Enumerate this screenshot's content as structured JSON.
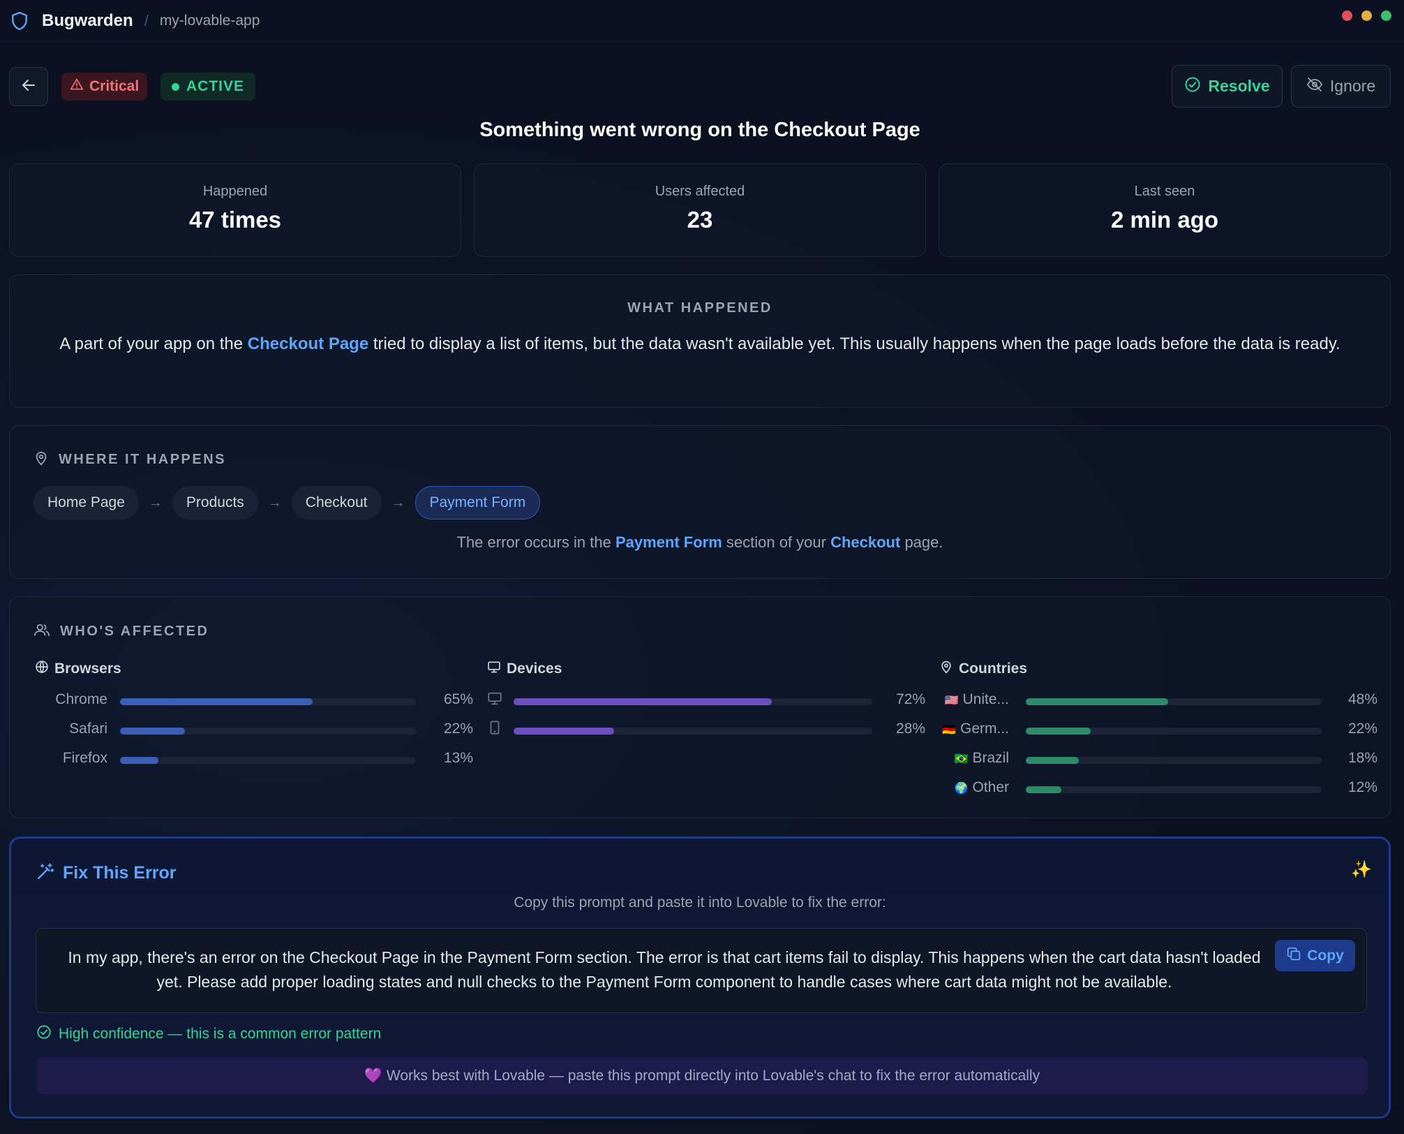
{
  "topbar": {
    "brand": "Bugwarden",
    "separator": "/",
    "project": "my-lovable-app"
  },
  "window_dots": [
    "#e0505a",
    "#e0b040",
    "#3fbf6a"
  ],
  "issue": {
    "severity": "Critical",
    "status": "ACTIVE",
    "title": "Something went wrong on the Checkout Page"
  },
  "actions": {
    "resolve": "Resolve",
    "ignore": "Ignore"
  },
  "stats": [
    {
      "label": "Happened",
      "value": "47 times"
    },
    {
      "label": "Users affected",
      "value": "23"
    },
    {
      "label": "Last seen",
      "value": "2 min ago"
    }
  ],
  "what_happened": {
    "heading": "WHAT HAPPENED",
    "before": "A part of your app on the ",
    "highlight": "Checkout Page",
    "after": " tried to display a list of items, but the data wasn't available yet. This usually happens when the page loads before the data is ready."
  },
  "where": {
    "heading": "WHERE IT HAPPENS",
    "crumbs": [
      "Home Page",
      "Products",
      "Checkout",
      "Payment Form"
    ],
    "arrow": "→",
    "desc_a": "The error occurs in the ",
    "desc_b": "Payment Form",
    "desc_c": " section of your ",
    "desc_d": "Checkout",
    "desc_e": " page."
  },
  "who": {
    "heading": "WHO'S AFFECTED",
    "browsers": {
      "title": "Browsers",
      "rows": [
        {
          "name": "Chrome",
          "pct_label": "65%",
          "value": 0.65
        },
        {
          "name": "Safari",
          "pct_label": "22%",
          "value": 0.22
        },
        {
          "name": "Firefox",
          "pct_label": "13%",
          "value": 0.13
        }
      ]
    },
    "devices": {
      "title": "Devices",
      "rows": [
        {
          "icon": "desktop-icon",
          "pct_label": "72%",
          "value": 0.72
        },
        {
          "icon": "mobile-icon",
          "pct_label": "28%",
          "value": 0.28
        }
      ]
    },
    "countries": {
      "title": "Countries",
      "rows": [
        {
          "flag": "🇺🇸",
          "name": "Unite...",
          "pct_label": "48%",
          "value": 0.48
        },
        {
          "flag": "🇩🇪",
          "name": "Germ...",
          "pct_label": "22%",
          "value": 0.22
        },
        {
          "flag": "🇧🇷",
          "name": "Brazil",
          "pct_label": "18%",
          "value": 0.18
        },
        {
          "flag": "🌍",
          "name": "Other",
          "pct_label": "12%",
          "value": 0.12
        }
      ]
    },
    "colors": {
      "browsers": "#3b5fb5",
      "devices": "#6d4fc2",
      "countries": "#2f8a6a"
    }
  },
  "fix": {
    "title": "Fix This Error",
    "sparkle": "✨",
    "subtitle": "Copy this prompt and paste it into Lovable to fix the error:",
    "prompt": "In my app, there's an error on the Checkout Page in the Payment Form section. The error is that cart items fail to display. This happens when the cart data hasn't loaded yet. Please add proper loading states and null checks to the Payment Form component to handle cases where cart data might not be available.",
    "copy_label": "Copy",
    "confidence": "High confidence — this is a common error pattern",
    "lovable_note": "💜 Works best with Lovable — paste this prompt directly into Lovable's chat to fix the error automatically"
  }
}
